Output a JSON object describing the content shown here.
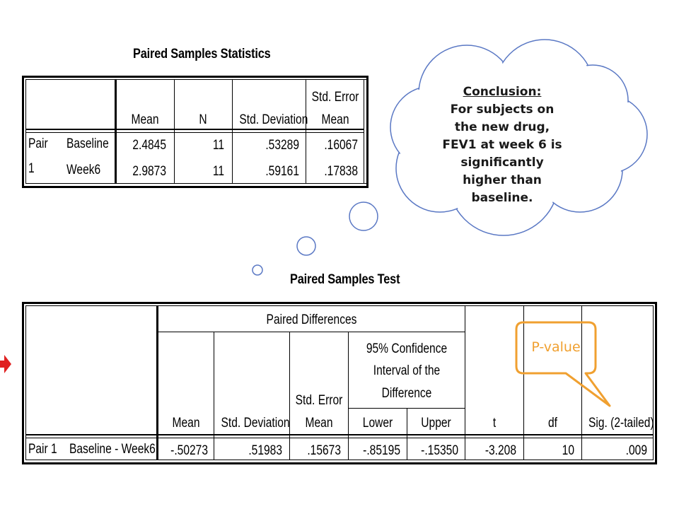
{
  "stats": {
    "title": "Paired Samples Statistics",
    "headers": {
      "mean": "Mean",
      "n": "N",
      "std_dev": "Std. Deviation",
      "std_err_1": "Std. Error",
      "std_err_2": "Mean"
    },
    "pair_label_1": "Pair",
    "pair_label_2": "1",
    "rows": [
      {
        "label": "Baseline",
        "mean": "2.4845",
        "n": "11",
        "std_dev": ".53289",
        "std_err": ".16067"
      },
      {
        "label": "Week6",
        "mean": "2.9873",
        "n": "11",
        "std_dev": ".59161",
        "std_err": ".17838"
      }
    ]
  },
  "test": {
    "title": "Paired Samples Test",
    "paired_diff": "Paired Differences",
    "ci_1": "95% Confidence",
    "ci_2": "Interval of the",
    "ci_3": "Difference",
    "headers": {
      "mean": "Mean",
      "std_dev": "Std. Deviation",
      "std_err_1": "Std. Error",
      "std_err_2": "Mean",
      "lower": "Lower",
      "upper": "Upper",
      "t": "t",
      "df": "df",
      "sig": "Sig. (2-tailed)"
    },
    "row": {
      "pair": "Pair 1",
      "label": "Baseline - Week6",
      "mean": "-.50273",
      "std_dev": ".51983",
      "std_err": ".15673",
      "lower": "-.85195",
      "upper": "-.15350",
      "t": "-3.208",
      "df": "10",
      "sig": ".009"
    }
  },
  "bubble": {
    "heading": "Conclusion:",
    "lines": [
      "For subjects on",
      "the new drug,",
      "FEV1 at week 6 is",
      "significantly",
      "higher than",
      "baseline."
    ]
  },
  "callout": {
    "label": "P-value",
    "color": "#f0a030"
  },
  "arrow_color": "#e02020"
}
